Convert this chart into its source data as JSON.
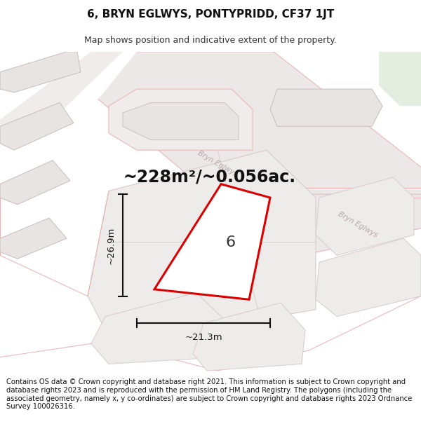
{
  "title": "6, BRYN EGLWYS, PONTYPRIDD, CF37 1JT",
  "subtitle": "Map shows position and indicative extent of the property.",
  "area_label": "~228m²/~0.056ac.",
  "width_label": "~21.3m",
  "height_label": "~26.9m",
  "number_label": "6",
  "footer": "Contains OS data © Crown copyright and database right 2021. This information is subject to Crown copyright and database rights 2023 and is reproduced with the permission of HM Land Registry. The polygons (including the associated geometry, namely x, y co-ordinates) are subject to Crown copyright and database rights 2023 Ordnance Survey 100026316.",
  "map_bg": "#f7f4f4",
  "road_fill": "#ede8e8",
  "road_edge": "#ddd0d0",
  "building_fill": "#e8e4e4",
  "building_edge": "#c8bcbc",
  "plot_fill": "#eeebeb",
  "plot_edge": "#d8cccc",
  "green_fill": "#d8e8d5",
  "highlight_color": "#dd0000",
  "highlight_fill": "#ffffff",
  "dim_color": "#111111",
  "road_label_color": "#b8a8a8",
  "title_fontsize": 11,
  "subtitle_fontsize": 9,
  "area_fontsize": 17,
  "number_fontsize": 16,
  "dim_fontsize": 9.5,
  "footer_fontsize": 7.2
}
